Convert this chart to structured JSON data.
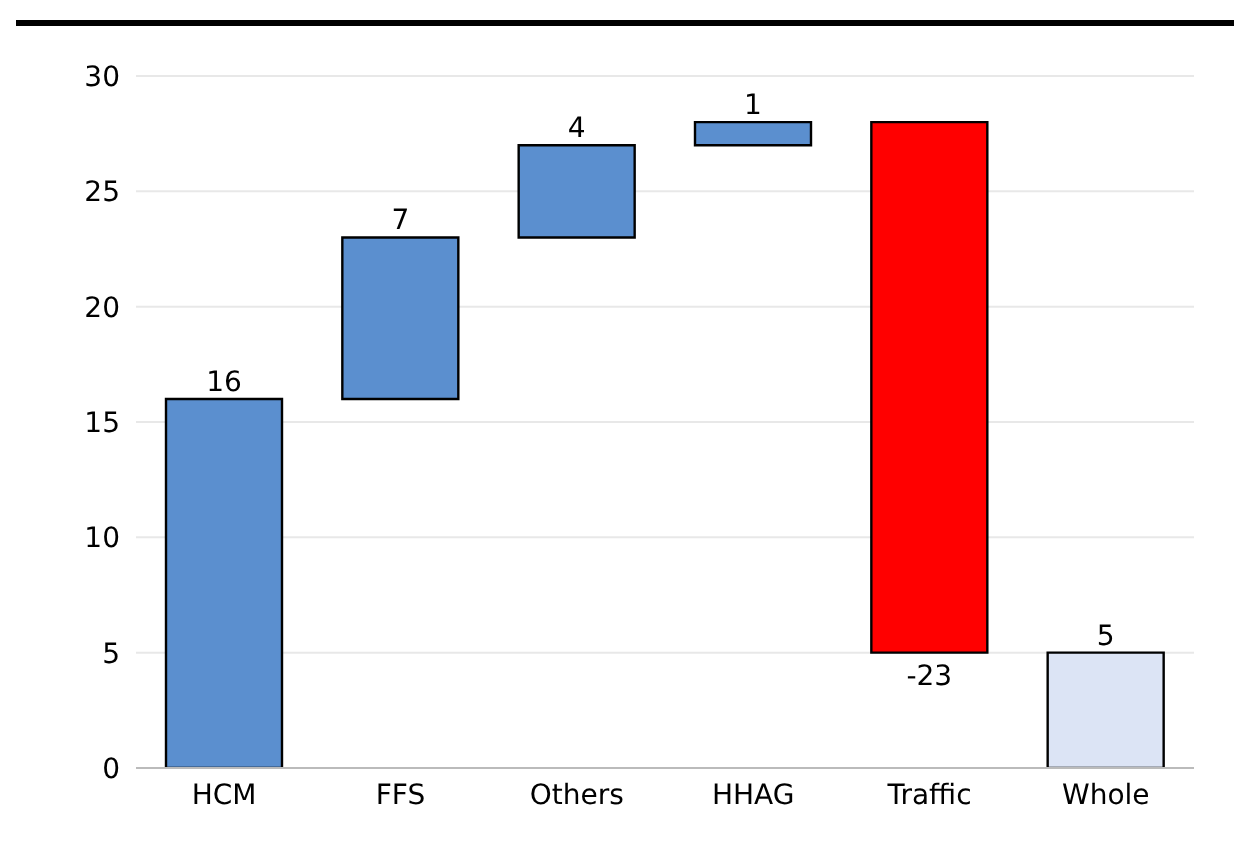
{
  "chart_data": {
    "type": "bar",
    "categories": [
      "HCM",
      "FFS",
      "Others",
      "HHAG",
      "Traffic",
      "Whole"
    ],
    "values": [
      16,
      7,
      4,
      1,
      -23,
      5
    ],
    "base": [
      0,
      16,
      23,
      27,
      28,
      0
    ],
    "colors": [
      "#5b8fcf",
      "#5b8fcf",
      "#5b8fcf",
      "#5b8fcf",
      "#ff0000",
      "#dce4f5"
    ],
    "ylim": [
      0,
      30
    ],
    "yticks": [
      0,
      5,
      10,
      15,
      20,
      25,
      30
    ],
    "grid": "y",
    "data_labels": true
  }
}
